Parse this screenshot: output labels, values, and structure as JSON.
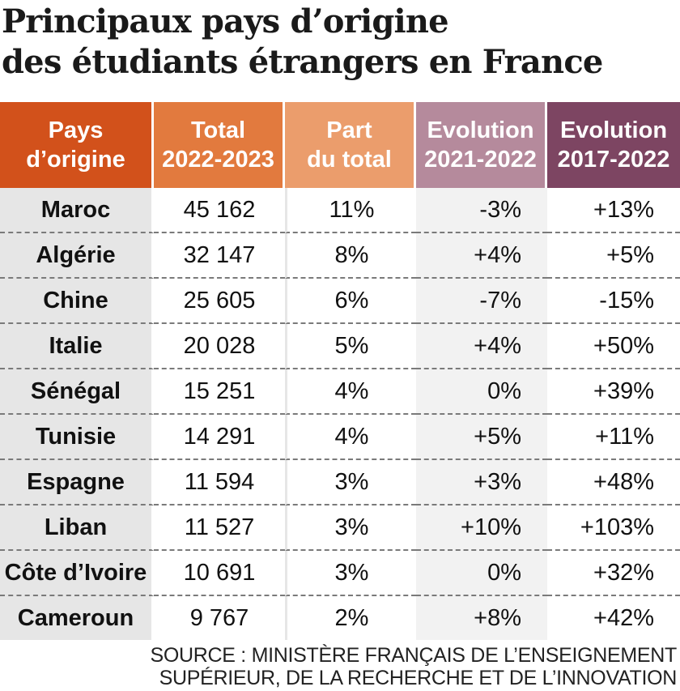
{
  "title": {
    "line1": "Principaux pays d’origine",
    "line2": "des étudiants étrangers en France"
  },
  "colors": {
    "col_country": "#d2511b",
    "col_total": "#e27a3e",
    "col_share": "#eb9d6c",
    "col_evo1": "#b58a9c",
    "col_evo2": "#7d4562"
  },
  "chart_data": {
    "type": "table",
    "title": "Principaux pays d’origine des étudiants étrangers en France",
    "headers": [
      {
        "line1": "Pays",
        "line2": "d’origine"
      },
      {
        "line1": "Total",
        "line2": "2022-2023"
      },
      {
        "line1": "Part",
        "line2": "du total"
      },
      {
        "line1": "Evolution",
        "line2": "2021-2022"
      },
      {
        "line1": "Evolution",
        "line2": "2017-2022"
      }
    ],
    "rows": [
      {
        "country": "Maroc",
        "total": "45 162",
        "share": "11%",
        "evo_2021_2022": "-3%",
        "evo_2017_2022": "+13%"
      },
      {
        "country": "Algérie",
        "total": "32 147",
        "share": "8%",
        "evo_2021_2022": "+4%",
        "evo_2017_2022": "+5%"
      },
      {
        "country": "Chine",
        "total": "25 605",
        "share": "6%",
        "evo_2021_2022": "-7%",
        "evo_2017_2022": "-15%"
      },
      {
        "country": "Italie",
        "total": "20 028",
        "share": "5%",
        "evo_2021_2022": "+4%",
        "evo_2017_2022": "+50%"
      },
      {
        "country": "Sénégal",
        "total": "15 251",
        "share": "4%",
        "evo_2021_2022": "0%",
        "evo_2017_2022": "+39%"
      },
      {
        "country": "Tunisie",
        "total": "14 291",
        "share": "4%",
        "evo_2021_2022": "+5%",
        "evo_2017_2022": "+11%"
      },
      {
        "country": "Espagne",
        "total": "11 594",
        "share": "3%",
        "evo_2021_2022": "+3%",
        "evo_2017_2022": "+48%"
      },
      {
        "country": "Liban",
        "total": "11 527",
        "share": "3%",
        "evo_2021_2022": "+10%",
        "evo_2017_2022": "+103%"
      },
      {
        "country": "Côte d’Ivoire",
        "total": "10 691",
        "share": "3%",
        "evo_2021_2022": "0%",
        "evo_2017_2022": "+32%"
      },
      {
        "country": "Cameroun",
        "total": "9 767",
        "share": "2%",
        "evo_2021_2022": "+8%",
        "evo_2017_2022": "+42%"
      }
    ]
  },
  "source": {
    "line1": "SOURCE : MINISTÈRE FRANÇAIS DE L’ENSEIGNEMENT",
    "line2": "SUPÉRIEUR, DE LA RECHERCHE ET DE L’INNOVATION"
  }
}
